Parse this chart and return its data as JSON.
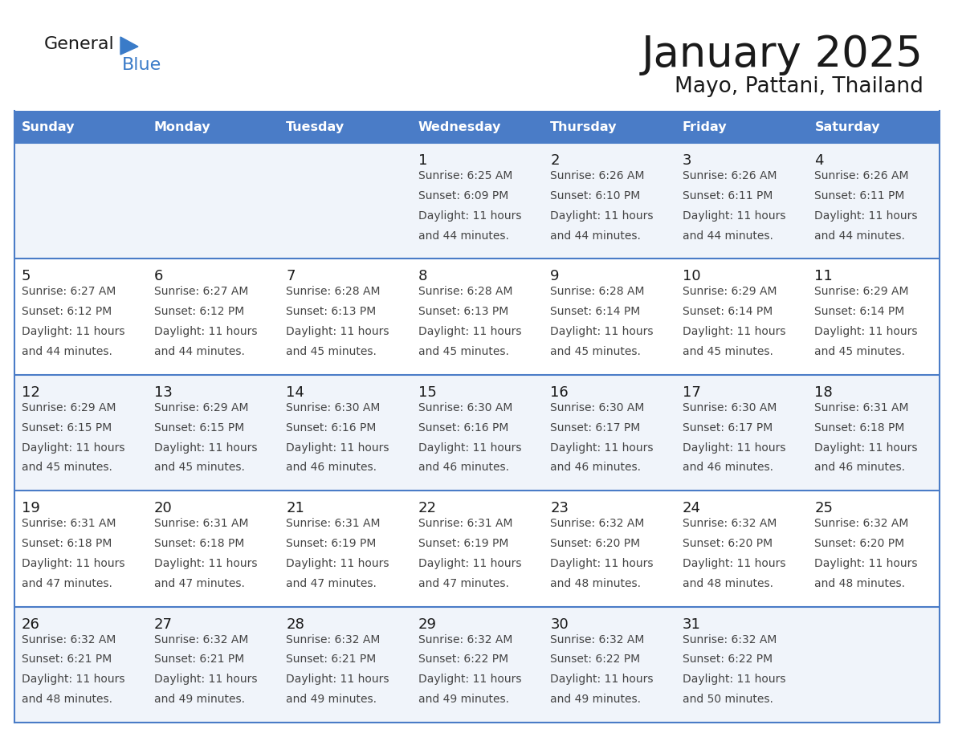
{
  "title": "January 2025",
  "subtitle": "Mayo, Pattani, Thailand",
  "header_bg_color": "#4a7cc7",
  "header_text_color": "#FFFFFF",
  "day_names": [
    "Sunday",
    "Monday",
    "Tuesday",
    "Wednesday",
    "Thursday",
    "Friday",
    "Saturday"
  ],
  "row_bg_even": "#f0f4fa",
  "row_bg_odd": "#ffffff",
  "grid_line_color": "#4a7cc7",
  "title_color": "#1a1a1a",
  "subtitle_color": "#1a1a1a",
  "cell_text_color": "#444444",
  "day_num_color": "#1a1a1a",
  "logo_general_color": "#1a1a1a",
  "logo_blue_color": "#3a7bc8",
  "logo_triangle_color": "#3a7bc8",
  "calendar_data": [
    [
      {
        "day": "",
        "sunrise": "",
        "sunset": "",
        "daylight": ""
      },
      {
        "day": "",
        "sunrise": "",
        "sunset": "",
        "daylight": ""
      },
      {
        "day": "",
        "sunrise": "",
        "sunset": "",
        "daylight": ""
      },
      {
        "day": "1",
        "sunrise": "6:25 AM",
        "sunset": "6:09 PM",
        "daylight": "11 hours and 44 minutes."
      },
      {
        "day": "2",
        "sunrise": "6:26 AM",
        "sunset": "6:10 PM",
        "daylight": "11 hours and 44 minutes."
      },
      {
        "day": "3",
        "sunrise": "6:26 AM",
        "sunset": "6:11 PM",
        "daylight": "11 hours and 44 minutes."
      },
      {
        "day": "4",
        "sunrise": "6:26 AM",
        "sunset": "6:11 PM",
        "daylight": "11 hours and 44 minutes."
      }
    ],
    [
      {
        "day": "5",
        "sunrise": "6:27 AM",
        "sunset": "6:12 PM",
        "daylight": "11 hours and 44 minutes."
      },
      {
        "day": "6",
        "sunrise": "6:27 AM",
        "sunset": "6:12 PM",
        "daylight": "11 hours and 44 minutes."
      },
      {
        "day": "7",
        "sunrise": "6:28 AM",
        "sunset": "6:13 PM",
        "daylight": "11 hours and 45 minutes."
      },
      {
        "day": "8",
        "sunrise": "6:28 AM",
        "sunset": "6:13 PM",
        "daylight": "11 hours and 45 minutes."
      },
      {
        "day": "9",
        "sunrise": "6:28 AM",
        "sunset": "6:14 PM",
        "daylight": "11 hours and 45 minutes."
      },
      {
        "day": "10",
        "sunrise": "6:29 AM",
        "sunset": "6:14 PM",
        "daylight": "11 hours and 45 minutes."
      },
      {
        "day": "11",
        "sunrise": "6:29 AM",
        "sunset": "6:14 PM",
        "daylight": "11 hours and 45 minutes."
      }
    ],
    [
      {
        "day": "12",
        "sunrise": "6:29 AM",
        "sunset": "6:15 PM",
        "daylight": "11 hours and 45 minutes."
      },
      {
        "day": "13",
        "sunrise": "6:29 AM",
        "sunset": "6:15 PM",
        "daylight": "11 hours and 45 minutes."
      },
      {
        "day": "14",
        "sunrise": "6:30 AM",
        "sunset": "6:16 PM",
        "daylight": "11 hours and 46 minutes."
      },
      {
        "day": "15",
        "sunrise": "6:30 AM",
        "sunset": "6:16 PM",
        "daylight": "11 hours and 46 minutes."
      },
      {
        "day": "16",
        "sunrise": "6:30 AM",
        "sunset": "6:17 PM",
        "daylight": "11 hours and 46 minutes."
      },
      {
        "day": "17",
        "sunrise": "6:30 AM",
        "sunset": "6:17 PM",
        "daylight": "11 hours and 46 minutes."
      },
      {
        "day": "18",
        "sunrise": "6:31 AM",
        "sunset": "6:18 PM",
        "daylight": "11 hours and 46 minutes."
      }
    ],
    [
      {
        "day": "19",
        "sunrise": "6:31 AM",
        "sunset": "6:18 PM",
        "daylight": "11 hours and 47 minutes."
      },
      {
        "day": "20",
        "sunrise": "6:31 AM",
        "sunset": "6:18 PM",
        "daylight": "11 hours and 47 minutes."
      },
      {
        "day": "21",
        "sunrise": "6:31 AM",
        "sunset": "6:19 PM",
        "daylight": "11 hours and 47 minutes."
      },
      {
        "day": "22",
        "sunrise": "6:31 AM",
        "sunset": "6:19 PM",
        "daylight": "11 hours and 47 minutes."
      },
      {
        "day": "23",
        "sunrise": "6:32 AM",
        "sunset": "6:20 PM",
        "daylight": "11 hours and 48 minutes."
      },
      {
        "day": "24",
        "sunrise": "6:32 AM",
        "sunset": "6:20 PM",
        "daylight": "11 hours and 48 minutes."
      },
      {
        "day": "25",
        "sunrise": "6:32 AM",
        "sunset": "6:20 PM",
        "daylight": "11 hours and 48 minutes."
      }
    ],
    [
      {
        "day": "26",
        "sunrise": "6:32 AM",
        "sunset": "6:21 PM",
        "daylight": "11 hours and 48 minutes."
      },
      {
        "day": "27",
        "sunrise": "6:32 AM",
        "sunset": "6:21 PM",
        "daylight": "11 hours and 49 minutes."
      },
      {
        "day": "28",
        "sunrise": "6:32 AM",
        "sunset": "6:21 PM",
        "daylight": "11 hours and 49 minutes."
      },
      {
        "day": "29",
        "sunrise": "6:32 AM",
        "sunset": "6:22 PM",
        "daylight": "11 hours and 49 minutes."
      },
      {
        "day": "30",
        "sunrise": "6:32 AM",
        "sunset": "6:22 PM",
        "daylight": "11 hours and 49 minutes."
      },
      {
        "day": "31",
        "sunrise": "6:32 AM",
        "sunset": "6:22 PM",
        "daylight": "11 hours and 50 minutes."
      },
      {
        "day": "",
        "sunrise": "",
        "sunset": "",
        "daylight": ""
      }
    ]
  ]
}
